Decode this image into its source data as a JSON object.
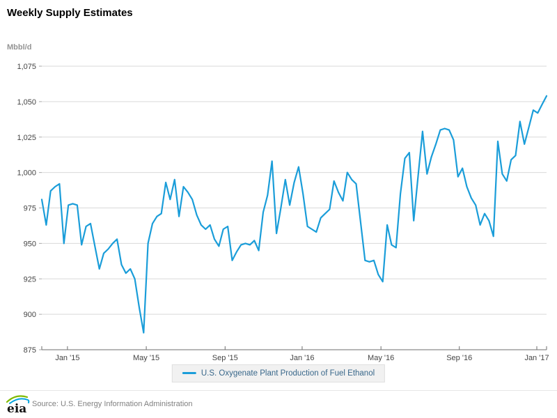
{
  "header": {
    "title": "Weekly Supply Estimates"
  },
  "chart_data": {
    "type": "line",
    "title": "Weekly Supply Estimates",
    "unit_label": "Mbbl/d",
    "xlabel": "",
    "ylabel": "Mbbl/d",
    "ylim": [
      875,
      1075
    ],
    "grid": true,
    "legend_position": "bottom",
    "y_ticks": [
      875,
      900,
      925,
      950,
      975,
      1000,
      1025,
      1050,
      1075
    ],
    "y_tick_labels": [
      "875",
      "900",
      "925",
      "950",
      "975",
      "1,000",
      "1,025",
      "1,050",
      "1,075"
    ],
    "x_tick_labels": [
      "Jan '15",
      "May '15",
      "Sep '15",
      "Jan '16",
      "May '16",
      "Sep '16",
      "Jan '17"
    ],
    "x_tick_indices": [
      5.8,
      23.6,
      41.4,
      58.8,
      76.6,
      94.3,
      111.8
    ],
    "x_description": "Weekly observations, Nov 2014 through mid-Jan 2017",
    "series": [
      {
        "name": "U.S. Oxygenate Plant Production of Fuel Ethanol",
        "color": "#1a9dd9",
        "values": [
          981,
          963,
          987,
          990,
          992,
          950,
          977,
          978,
          977,
          949,
          962,
          964,
          948,
          932,
          943,
          946,
          950,
          953,
          935,
          929,
          932,
          925,
          905,
          887,
          950,
          964,
          969,
          971,
          993,
          981,
          995,
          969,
          990,
          986,
          981,
          970,
          963,
          960,
          963,
          953,
          948,
          960,
          962,
          938,
          944,
          949,
          950,
          949,
          952,
          945,
          972,
          984,
          1008,
          957,
          975,
          995,
          977,
          993,
          1004,
          985,
          962,
          960,
          958,
          968,
          971,
          974,
          994,
          986,
          980,
          1000,
          995,
          992,
          965,
          938,
          937,
          938,
          928,
          923,
          963,
          949,
          947,
          985,
          1010,
          1014,
          966,
          998,
          1029,
          999,
          1011,
          1020,
          1030,
          1031,
          1030,
          1023,
          997,
          1003,
          990,
          982,
          977,
          963,
          971,
          966,
          955,
          1022,
          999,
          994,
          1009,
          1012,
          1036,
          1020,
          1032,
          1044,
          1042,
          1048,
          1054
        ]
      }
    ]
  },
  "legend": {
    "items": [
      {
        "label": "U.S. Oxygenate Plant Production of Fuel Ethanol",
        "color": "#1a9dd9"
      }
    ]
  },
  "footer": {
    "logo_text": "eia",
    "source": "Source: U.S. Energy Information Administration"
  },
  "colors": {
    "line": "#1a9dd9",
    "gridline": "#d9d9d9",
    "axis": "#6e6e6e",
    "tick_label": "#444444",
    "unit_label": "#949494",
    "legend_bg": "#f1f1f1",
    "legend_border": "#e0e0e0",
    "legend_text": "#38678a",
    "source_text": "#808080",
    "logo_green": "#7fba00",
    "logo_blue": "#00a3dd"
  }
}
